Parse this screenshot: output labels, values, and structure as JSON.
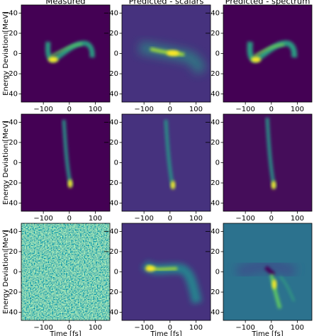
{
  "chart_data": [
    {
      "type": "heatmap",
      "title": "Measured",
      "ylabel": "Energy Deviation [MeV]",
      "xlim": [
        -185,
        156
      ],
      "ylim": [
        48,
        -48
      ],
      "xticks": [
        {
          "value": -100,
          "label": "−100"
        },
        0,
        100
      ],
      "yticks": [
        {
          "value": -40,
          "label": "−40"
        },
        {
          "value": -20,
          "label": "−20"
        },
        0,
        20,
        40
      ]
    },
    {
      "type": "heatmap",
      "title": "Predicted - scalars",
      "xlim": [
        -185,
        156
      ],
      "ylim": [
        48,
        -48
      ],
      "xticks": [
        {
          "value": -100,
          "label": "−100"
        },
        0,
        100
      ],
      "yticks": [
        {
          "value": -40,
          "label": "−40"
        },
        {
          "value": -20,
          "label": "−20"
        },
        0,
        20,
        40
      ]
    },
    {
      "type": "heatmap",
      "title": "Predicted - spectrum",
      "xlim": [
        -185,
        156
      ],
      "ylim": [
        48,
        -48
      ],
      "xticks": [
        {
          "value": -100,
          "label": "−100"
        },
        0,
        100
      ],
      "yticks": [
        {
          "value": -40,
          "label": "−40"
        },
        {
          "value": -20,
          "label": "−20"
        },
        0,
        20,
        40
      ]
    },
    {
      "type": "heatmap",
      "ylabel": "Energy Deviation [MeV]",
      "xlim": [
        -185,
        156
      ],
      "ylim": [
        48,
        -48
      ],
      "xticks": [
        {
          "value": -100,
          "label": "−100"
        },
        0,
        100
      ],
      "yticks": [
        {
          "value": -40,
          "label": "−40"
        },
        {
          "value": -20,
          "label": "−20"
        },
        0,
        20,
        40
      ]
    },
    {
      "type": "heatmap",
      "xlim": [
        -185,
        156
      ],
      "ylim": [
        48,
        -48
      ],
      "xticks": [
        {
          "value": -100,
          "label": "−100"
        },
        0,
        100
      ],
      "yticks": [
        {
          "value": -40,
          "label": "−40"
        },
        {
          "value": -20,
          "label": "−20"
        },
        0,
        20,
        40
      ]
    },
    {
      "type": "heatmap",
      "xlim": [
        -185,
        156
      ],
      "ylim": [
        48,
        -48
      ],
      "xticks": [
        {
          "value": -100,
          "label": "−100"
        },
        0,
        100
      ],
      "yticks": [
        {
          "value": -40,
          "label": "−40"
        },
        {
          "value": -20,
          "label": "−20"
        },
        0,
        20,
        40
      ]
    },
    {
      "type": "heatmap",
      "ylabel": "Energy Deviation [MeV]",
      "xlabel": "Time [fs]",
      "xlim": [
        -185,
        156
      ],
      "ylim": [
        48,
        -48
      ],
      "xticks": [
        {
          "value": -100,
          "label": "−100"
        },
        0,
        100
      ],
      "yticks": [
        {
          "value": -40,
          "label": "−40"
        },
        {
          "value": -20,
          "label": "−20"
        },
        0,
        20,
        40
      ]
    },
    {
      "type": "heatmap",
      "xlabel": "Time [fs]",
      "xlim": [
        -185,
        156
      ],
      "ylim": [
        48,
        -48
      ],
      "xticks": [
        {
          "value": -100,
          "label": "−100"
        },
        0,
        100
      ],
      "yticks": [
        {
          "value": -40,
          "label": "−40"
        },
        {
          "value": -20,
          "label": "−20"
        },
        0,
        20,
        40
      ]
    },
    {
      "type": "heatmap",
      "xlabel": "Time [fs]",
      "xlim": [
        -185,
        156
      ],
      "ylim": [
        48,
        -48
      ],
      "xticks": [
        {
          "value": -100,
          "label": "−100"
        },
        0,
        100
      ],
      "yticks": [
        {
          "value": -40,
          "label": "−40"
        },
        {
          "value": -20,
          "label": "−20"
        },
        0,
        20,
        40
      ]
    }
  ]
}
